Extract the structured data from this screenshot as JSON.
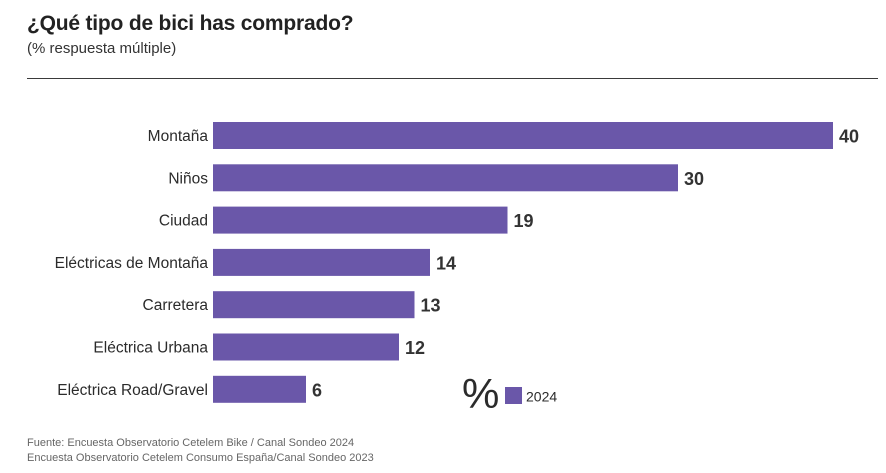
{
  "header": {
    "title": "¿Qué tipo de bici has comprado?",
    "subtitle": "(% respuesta múltiple)"
  },
  "chart_data": {
    "type": "bar",
    "orientation": "horizontal",
    "title": "¿Qué tipo de bici has comprado?",
    "subtitle": "(% respuesta múltiple)",
    "categories": [
      "Montaña",
      "Niños",
      "Ciudad",
      "Eléctricas de Montaña",
      "Carretera",
      "Eléctrica Urbana",
      "Eléctrica Road/Gravel"
    ],
    "series": [
      {
        "name": "2024",
        "values": [
          40,
          30,
          19,
          14,
          13,
          12,
          6
        ],
        "color": "#6a57a9"
      }
    ],
    "xlim": [
      0,
      40
    ],
    "grid": false,
    "data_labels": true,
    "legend": {
      "placement": "bottom-right",
      "unit_symbol": "%",
      "label": "2024"
    }
  },
  "footer": {
    "line1": "Fuente: Encuesta Observatorio Cetelem Bike / Canal Sondeo 2024",
    "line2": "Encuesta Observatorio Cetelem Consumo España/Canal Sondeo 2023"
  }
}
